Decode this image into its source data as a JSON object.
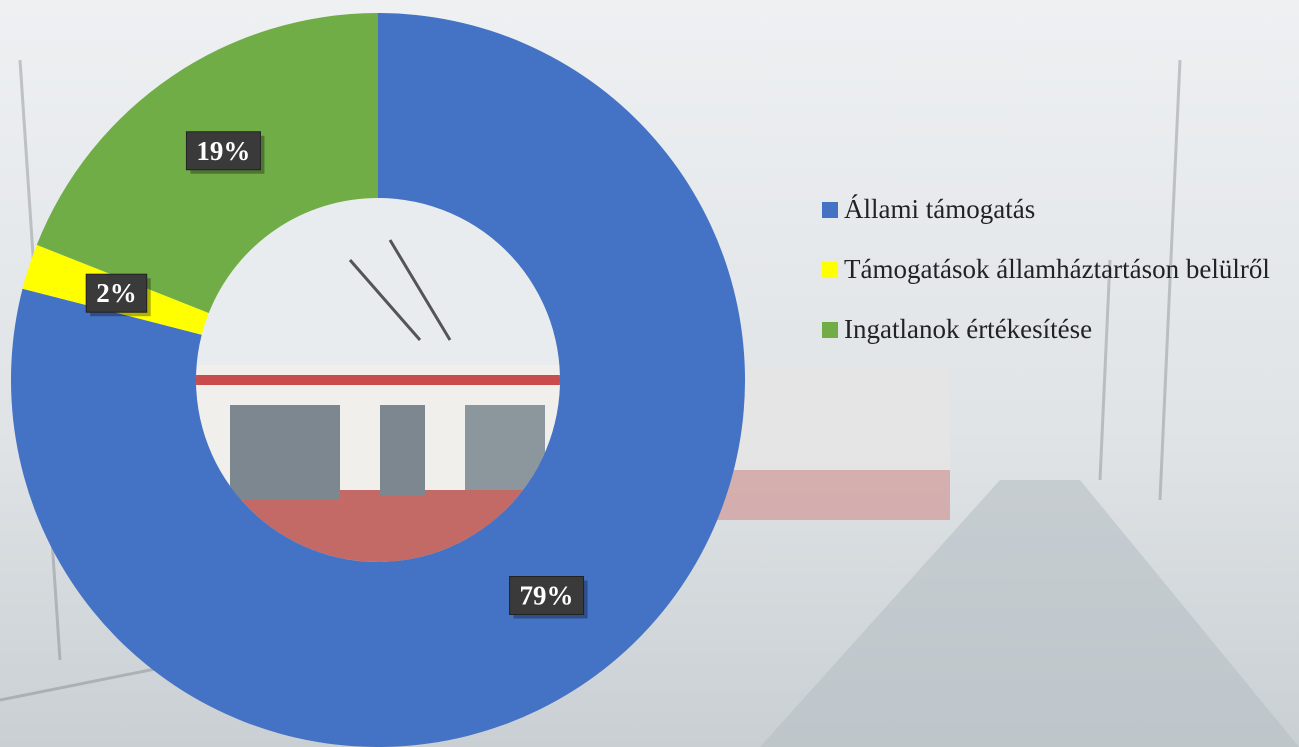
{
  "chart_data": {
    "type": "donut",
    "categories": [
      "Állami támogatás",
      "Támogatások államháztartáson belülről",
      "Ingatlanok értékesítése"
    ],
    "values": [
      79,
      2,
      19
    ],
    "value_labels": [
      "79%",
      "2%",
      "19%"
    ],
    "colors": [
      "#4472c4",
      "#ffff00",
      "#70ad47"
    ],
    "legend": "right"
  }
}
